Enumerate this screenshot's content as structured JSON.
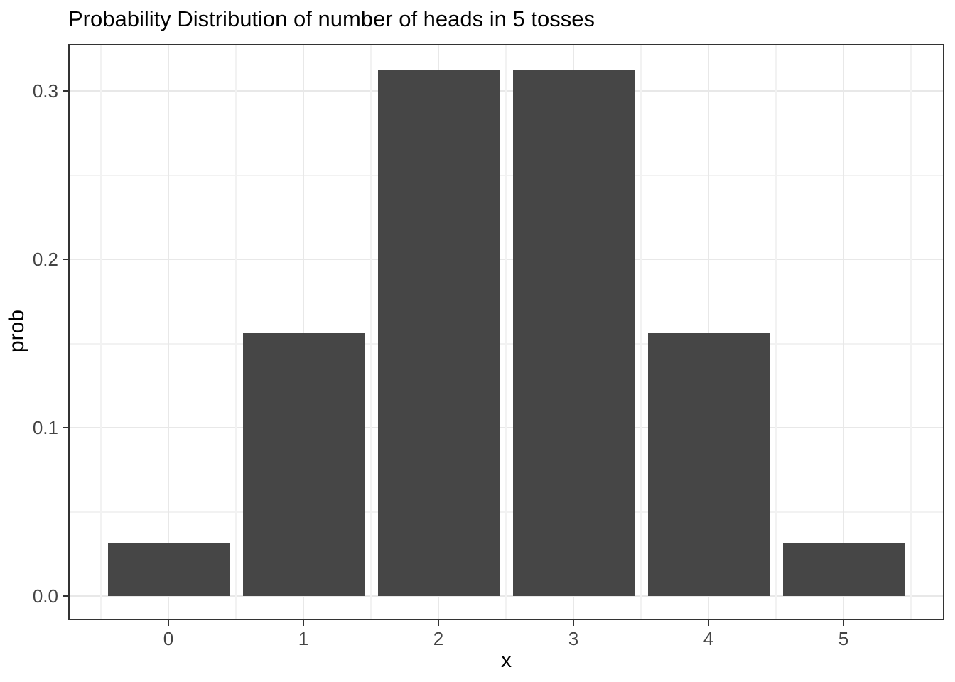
{
  "chart_data": {
    "type": "bar",
    "title": "Probability Distribution of number of heads in 5 tosses",
    "xlabel": "x",
    "ylabel": "prob",
    "categories": [
      "0",
      "1",
      "2",
      "3",
      "4",
      "5"
    ],
    "values": [
      0.03125,
      0.15625,
      0.3125,
      0.3125,
      0.15625,
      0.03125
    ],
    "y_ticks": [
      0.0,
      0.1,
      0.2,
      0.3
    ],
    "y_tick_labels": [
      "0.0",
      "0.1",
      "0.2",
      "0.3"
    ],
    "ylim": [
      -0.016,
      0.328
    ],
    "grid": true,
    "legend": "none",
    "bar_width_fraction": 0.9,
    "colors": {
      "bar_fill": "#464646",
      "grid_major": "#e8e8e8",
      "grid_minor": "#f2f2f2",
      "panel_border": "#333333",
      "tick_mark": "#333333",
      "tick_label": "#444444",
      "title_text": "#000000",
      "background": "#ffffff"
    }
  }
}
